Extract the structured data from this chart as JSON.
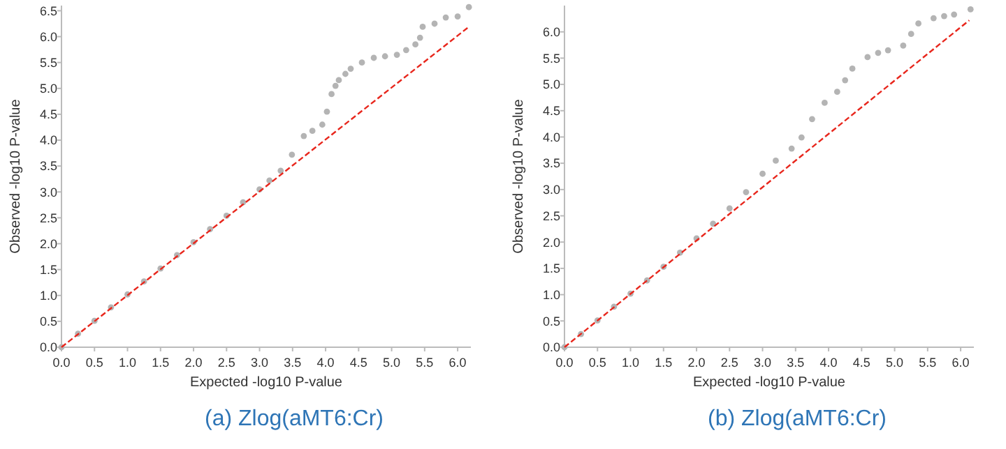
{
  "chart_data": [
    {
      "type": "scatter",
      "title": "(a) Zlog(aMT6:Cr)",
      "xlabel": "Expected -log10 P-value",
      "ylabel": "Observed -log10 P-value",
      "xlim": [
        0,
        6.2
      ],
      "ylim": [
        0,
        6.6
      ],
      "xticks": [
        {
          "value": 0,
          "label": "0.0"
        },
        0.5,
        {
          "value": 1,
          "label": "1.0"
        },
        1.5,
        {
          "value": 2,
          "label": "2.0"
        },
        2.5,
        {
          "value": 3,
          "label": "3.0"
        },
        3.5,
        {
          "value": 4,
          "label": "4.0"
        },
        4.5,
        {
          "value": 5,
          "label": "5.0"
        },
        5.5,
        {
          "value": 6,
          "label": "6.0"
        }
      ],
      "yticks": [
        {
          "value": 0,
          "label": "0.0"
        },
        0.5,
        {
          "value": 1,
          "label": "1.0"
        },
        1.5,
        {
          "value": 2,
          "label": "2.0"
        },
        2.5,
        {
          "value": 3,
          "label": "3.0"
        },
        3.5,
        {
          "value": 4,
          "label": "4.0"
        },
        4.5,
        {
          "value": 5,
          "label": "5.0"
        },
        5.5,
        {
          "value": 6,
          "label": "6.0"
        },
        6.5
      ],
      "grid": false,
      "series": [
        {
          "marker": "circle",
          "color": "#b4b4b4",
          "x": [
            0,
            0.25,
            0.5,
            0.75,
            1,
            1.25,
            1.5,
            1.75,
            2,
            2.25,
            2.5,
            2.75,
            3,
            3.15,
            3.32,
            3.49,
            3.67,
            3.8,
            3.95,
            4.02,
            4.09,
            4.15,
            4.2,
            4.3,
            4.38,
            4.55,
            4.73,
            4.9,
            5.08,
            5.22,
            5.36,
            5.43,
            5.47,
            5.65,
            5.82,
            6,
            6.17
          ],
          "values": [
            0,
            0.26,
            0.51,
            0.77,
            1.02,
            1.27,
            1.52,
            1.78,
            2.03,
            2.28,
            2.54,
            2.8,
            3.05,
            3.22,
            3.41,
            3.72,
            4.08,
            4.18,
            4.3,
            4.55,
            4.89,
            5.05,
            5.16,
            5.28,
            5.38,
            5.5,
            5.59,
            5.62,
            5.65,
            5.74,
            5.85,
            5.98,
            6.19,
            6.25,
            6.37,
            6.39,
            6.57
          ]
        },
        {
          "type": "line",
          "line_style": "dashed",
          "color": "#e8261c",
          "x": [
            0,
            6.17
          ],
          "values": [
            0,
            6.19
          ]
        }
      ]
    },
    {
      "type": "scatter",
      "title": "(b) Zlog(aMT6:Cr)",
      "xlabel": "Expected -log10 P-value",
      "ylabel": "Observed -log10 P-value",
      "xlim": [
        0,
        6.2
      ],
      "ylim": [
        0,
        6.5
      ],
      "xticks": [
        {
          "value": 0,
          "label": "0.0"
        },
        0.5,
        {
          "value": 1,
          "label": "1.0"
        },
        1.5,
        {
          "value": 2,
          "label": "2.0"
        },
        2.5,
        {
          "value": 3,
          "label": "3.0"
        },
        3.5,
        {
          "value": 4,
          "label": "4.0"
        },
        4.5,
        {
          "value": 5,
          "label": "5.0"
        },
        5.5,
        {
          "value": 6,
          "label": "6.0"
        }
      ],
      "yticks": [
        {
          "value": 0,
          "label": "0.0"
        },
        0.5,
        {
          "value": 1,
          "label": "1.0"
        },
        1.5,
        {
          "value": 2,
          "label": "2.0"
        },
        2.5,
        {
          "value": 3,
          "label": "3.0"
        },
        3.5,
        {
          "value": 4,
          "label": "4.0"
        },
        4.5,
        {
          "value": 5,
          "label": "5.0"
        },
        5.5,
        {
          "value": 6,
          "label": "6.0"
        }
      ],
      "grid": false,
      "series": [
        {
          "marker": "circle",
          "color": "#b4b4b4",
          "x": [
            0,
            0.25,
            0.5,
            0.75,
            1,
            1.25,
            1.5,
            1.75,
            2,
            2.25,
            2.5,
            2.75,
            3,
            3.2,
            3.44,
            3.59,
            3.75,
            3.94,
            4.13,
            4.25,
            4.36,
            4.59,
            4.75,
            4.9,
            5.13,
            5.25,
            5.36,
            5.59,
            5.75,
            5.9,
            6.15
          ],
          "values": [
            0,
            0.25,
            0.51,
            0.77,
            1.02,
            1.27,
            1.53,
            1.8,
            2.07,
            2.35,
            2.64,
            2.95,
            3.3,
            3.55,
            3.78,
            3.99,
            4.34,
            4.65,
            4.86,
            5.08,
            5.3,
            5.52,
            5.6,
            5.65,
            5.74,
            5.96,
            6.16,
            6.26,
            6.3,
            6.33,
            6.43
          ]
        },
        {
          "type": "line",
          "line_style": "dashed",
          "color": "#e8261c",
          "x": [
            0,
            6.13
          ],
          "values": [
            0,
            6.22
          ]
        }
      ]
    }
  ]
}
